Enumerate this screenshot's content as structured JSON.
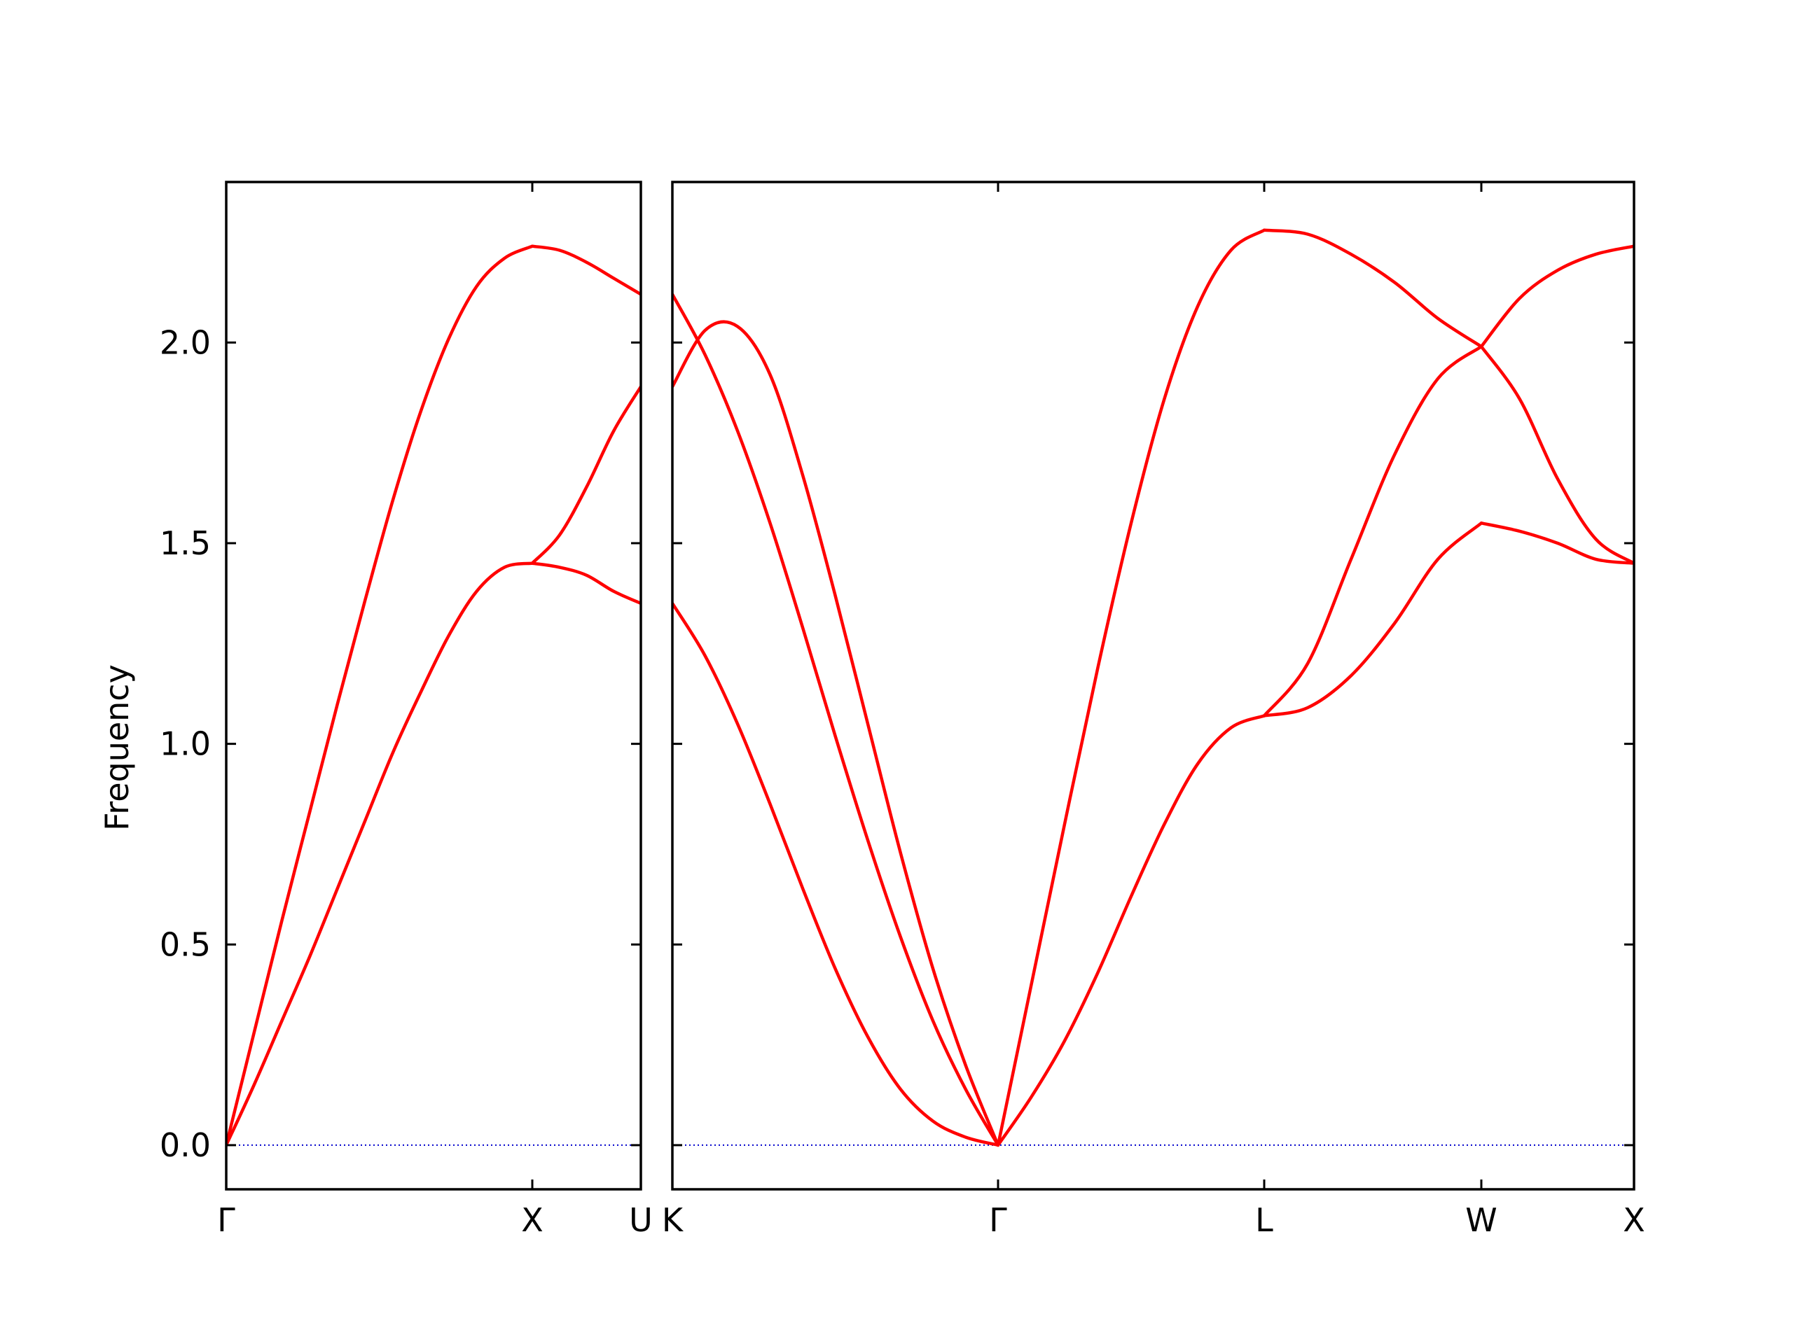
{
  "chart_data": {
    "type": "line",
    "ylabel": "Frequency",
    "ylim": [
      -0.11,
      2.4
    ],
    "yticks": [
      0.0,
      0.5,
      1.0,
      1.5,
      2.0
    ],
    "ytick_labels": [
      "0.0",
      "0.5",
      "1.0",
      "1.5",
      "2.0"
    ],
    "line_color": "#ff0000",
    "zero_line_color": "#0000cc",
    "zero_line_style": "dotted",
    "panels": [
      {
        "xticks": [
          "Γ",
          "X",
          "U"
        ],
        "segments": [
          {
            "from": "Γ",
            "to": "X",
            "series": [
              {
                "values": [
                  0.0,
                  0.28,
                  0.56,
                  0.83,
                  1.1,
                  1.36,
                  1.61,
                  1.83,
                  2.01,
                  2.14,
                  2.21,
                  2.24
                ]
              },
              {
                "values": [
                  0.0,
                  0.15,
                  0.31,
                  0.47,
                  0.64,
                  0.81,
                  0.98,
                  1.13,
                  1.27,
                  1.38,
                  1.44,
                  1.45
                ]
              }
            ]
          },
          {
            "from": "X",
            "to": "U",
            "series": [
              {
                "values": [
                  2.24,
                  2.23,
                  2.2,
                  2.16,
                  2.12
                ]
              },
              {
                "values": [
                  1.45,
                  1.52,
                  1.64,
                  1.78,
                  1.89
                ]
              },
              {
                "values": [
                  1.45,
                  1.44,
                  1.42,
                  1.38,
                  1.35
                ]
              }
            ]
          }
        ]
      },
      {
        "xticks": [
          "K",
          "Γ",
          "L",
          "W",
          "X"
        ],
        "segments": [
          {
            "from": "K",
            "to": "Γ",
            "series": [
              {
                "values": [
                  2.12,
                  1.97,
                  1.78,
                  1.55,
                  1.29,
                  1.02,
                  0.76,
                  0.52,
                  0.31,
                  0.14,
                  0.0
                ]
              },
              {
                "values": [
                  1.89,
                  2.03,
                  2.04,
                  1.92,
                  1.67,
                  1.37,
                  1.05,
                  0.73,
                  0.44,
                  0.2,
                  0.0
                ]
              },
              {
                "values": [
                  1.35,
                  1.22,
                  1.05,
                  0.85,
                  0.64,
                  0.44,
                  0.27,
                  0.14,
                  0.06,
                  0.02,
                  0.0
                ]
              }
            ]
          },
          {
            "from": "Γ",
            "to": "L",
            "series": [
              {
                "values": [
                  0.0,
                  0.4,
                  0.8,
                  1.19,
                  1.55,
                  1.86,
                  2.09,
                  2.23,
                  2.28
                ]
              },
              {
                "values": [
                  0.0,
                  0.12,
                  0.26,
                  0.43,
                  0.62,
                  0.8,
                  0.95,
                  1.04,
                  1.07
                ]
              }
            ]
          },
          {
            "from": "L",
            "to": "W",
            "series": [
              {
                "values": [
                  2.28,
                  2.27,
                  2.22,
                  2.15,
                  2.06,
                  1.99
                ]
              },
              {
                "values": [
                  1.07,
                  1.2,
                  1.46,
                  1.72,
                  1.91,
                  1.99
                ]
              },
              {
                "values": [
                  1.07,
                  1.09,
                  1.17,
                  1.3,
                  1.46,
                  1.55
                ]
              }
            ]
          },
          {
            "from": "W",
            "to": "X",
            "series": [
              {
                "values": [
                  1.99,
                  2.11,
                  2.18,
                  2.22,
                  2.24
                ]
              },
              {
                "values": [
                  1.99,
                  1.86,
                  1.66,
                  1.51,
                  1.45
                ]
              },
              {
                "values": [
                  1.55,
                  1.53,
                  1.5,
                  1.46,
                  1.45
                ]
              }
            ]
          }
        ]
      }
    ]
  }
}
